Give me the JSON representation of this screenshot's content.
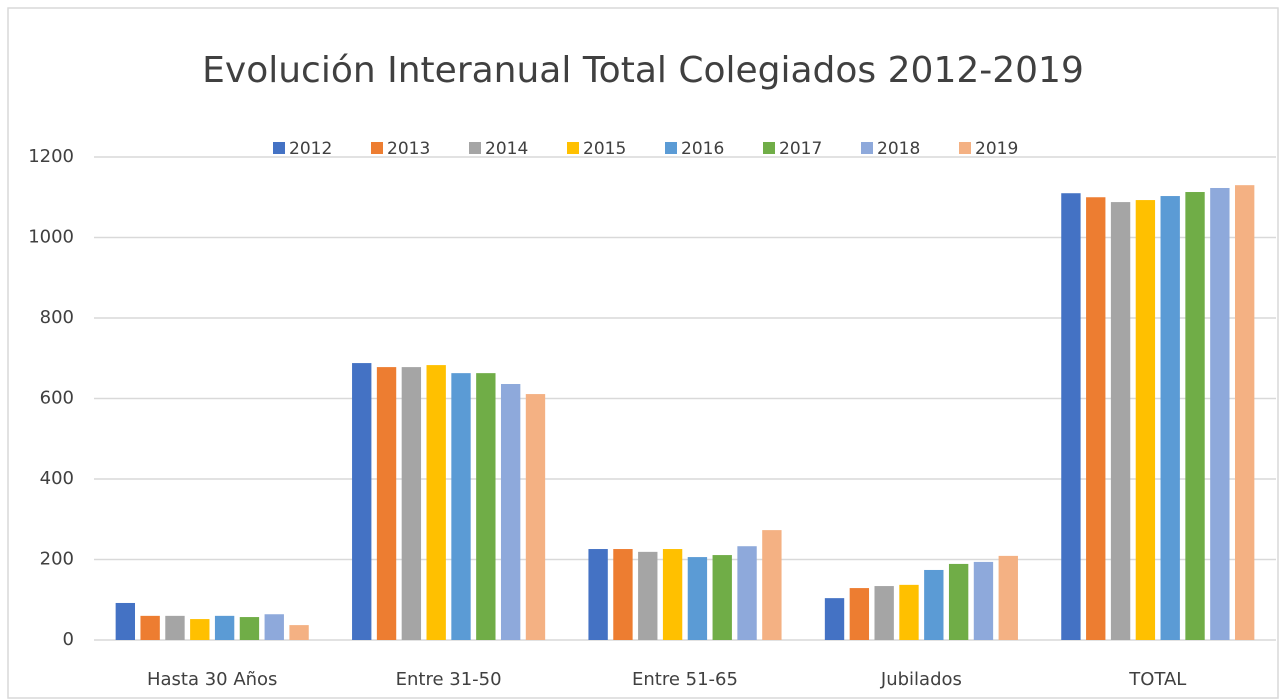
{
  "chart_data": {
    "type": "bar",
    "title": "Evolución Interanual Total Colegiados 2012-2019",
    "categories": [
      "Hasta 30 Años",
      "Entre 31-50",
      "Entre 51-65",
      "Jubilados",
      "TOTAL"
    ],
    "series": [
      {
        "name": "2012",
        "color": "#4472c4",
        "values": [
          92,
          688,
          226,
          104,
          1110
        ]
      },
      {
        "name": "2013",
        "color": "#ed7d31",
        "values": [
          60,
          678,
          226,
          129,
          1100
        ]
      },
      {
        "name": "2014",
        "color": "#a5a5a5",
        "values": [
          60,
          678,
          219,
          134,
          1088
        ]
      },
      {
        "name": "2015",
        "color": "#ffc000",
        "values": [
          52,
          683,
          226,
          137,
          1093
        ]
      },
      {
        "name": "2016",
        "color": "#5b9bd5",
        "values": [
          60,
          663,
          206,
          174,
          1103
        ]
      },
      {
        "name": "2017",
        "color": "#70ad47",
        "values": [
          57,
          663,
          211,
          189,
          1113
        ]
      },
      {
        "name": "2018",
        "color": "#8ea9db",
        "values": [
          64,
          636,
          233,
          194,
          1123
        ]
      },
      {
        "name": "2019",
        "color": "#f4b183",
        "values": [
          37,
          611,
          273,
          209,
          1130
        ]
      }
    ],
    "ylim": [
      0,
      1200
    ],
    "yticks": [
      0,
      200,
      400,
      600,
      800,
      1000,
      1200
    ],
    "grid": true,
    "legend": "top"
  }
}
